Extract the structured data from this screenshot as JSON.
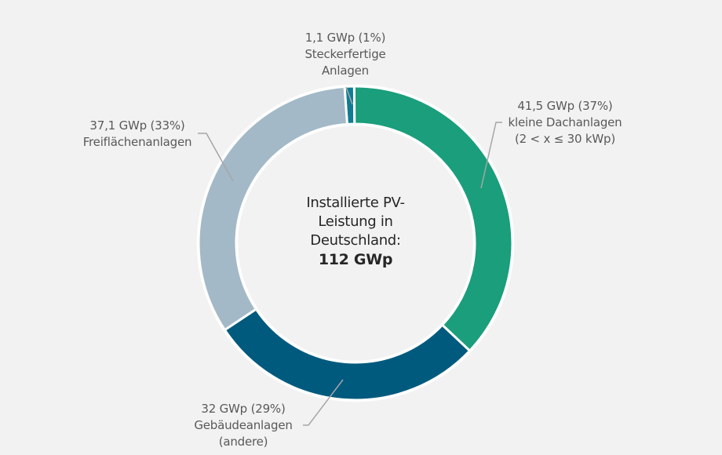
{
  "chart_data": {
    "type": "pie",
    "donut": true,
    "title": "Installierte PV-Leistung in Deutschland: 112 GWp",
    "center_text": {
      "lines": [
        "Installierte PV-",
        "Leistung in",
        "Deutschland:"
      ],
      "total": "112 GWp"
    },
    "unit": "GWp",
    "total": 112,
    "categories": [
      "Steckerfertige Anlagen",
      "kleine Dachanlagen (2 < x ≤ 30 kWp)",
      "Gebäudeanlagen (andere)",
      "Freiflächenanlagen"
    ],
    "values": [
      1.1,
      41.5,
      32,
      37.1
    ],
    "percentages": [
      1,
      37,
      29,
      33
    ],
    "colors": [
      "#0f7c94",
      "#1a9e7c",
      "#005a7e",
      "#a3b9c7"
    ],
    "start_angle_deg": -4,
    "direction": "clockwise"
  },
  "labels": {
    "stecker": {
      "line1": "1,1 GWp (1%)",
      "line2": "Steckerfertige",
      "line3": "Anlagen"
    },
    "klein": {
      "line1": "41,5 GWp (37%)",
      "line2": "kleine Dachanlagen",
      "line3": "(2 < x ≤ 30 kWp)"
    },
    "gebaeude": {
      "line1": "32 GWp (29%)",
      "line2": "Gebäudeanlagen",
      "line3": "(andere)"
    },
    "frei": {
      "line1": "37,1 GWp (33%)",
      "line2": "Freiflächenanlagen"
    }
  },
  "colors": {
    "background": "#f2f2f2",
    "leader_line": "#a6a6a6",
    "separator": "#ffffff"
  }
}
